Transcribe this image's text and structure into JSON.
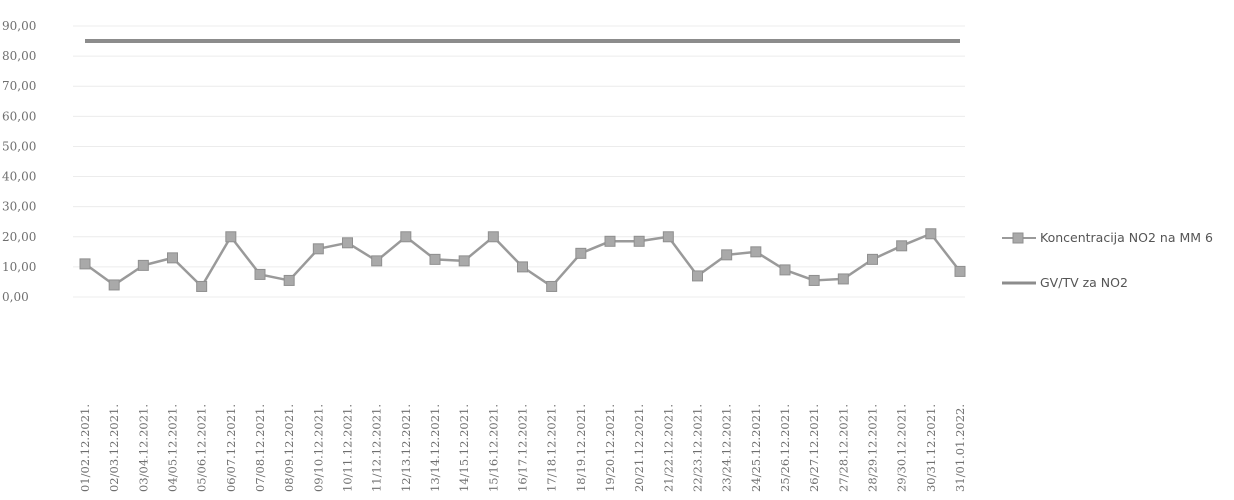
{
  "chart_data": {
    "type": "line",
    "title": "",
    "xlabel": "",
    "ylabel": "",
    "ylim": [
      0,
      90
    ],
    "yticks": [
      "0,00",
      "10,00",
      "20,00",
      "30,00",
      "40,00",
      "50,00",
      "60,00",
      "70,00",
      "80,00",
      "90,00"
    ],
    "grid": true,
    "legend_position": "right",
    "categories": [
      "01/02.12.2021.",
      "02/03.12.2021.",
      "03/04.12.2021.",
      "04/05.12.2021.",
      "05/06.12.2021.",
      "06/07.12.2021.",
      "07/08.12.2021.",
      "08/09.12.2021.",
      "09/10.12.2021.",
      "10/11.12.2021.",
      "11/12.12.2021.",
      "12/13.12.2021.",
      "13/14.12.2021.",
      "14/15.12.2021.",
      "15/16.12.2021.",
      "16/17.12.2021.",
      "17/18.12.2021.",
      "18/19.12.2021.",
      "19/20.12.2021.",
      "20/21.12.2021.",
      "21/22.12.2021.",
      "22/23.12.2021.",
      "23/24.12.2021.",
      "24/25.12.2021.",
      "25/26.12.2021.",
      "26/27.12.2021.",
      "27/28.12.2021.",
      "28/29.12.2021.",
      "29/30.12.2021.",
      "30/31.12.2021.",
      "31/01.01.2022."
    ],
    "series": [
      {
        "name": "Koncentracija NO2 na MM 6",
        "color": "#9a9a9a",
        "marker": "square",
        "values": [
          11,
          4,
          10.5,
          13,
          3.5,
          20,
          7.5,
          5.5,
          16,
          18,
          12,
          20,
          12.5,
          12,
          20,
          10,
          3.5,
          14.5,
          18.5,
          18.5,
          20,
          7,
          14,
          15,
          9,
          5.5,
          6,
          12.5,
          17,
          21,
          8.5
        ]
      },
      {
        "name": "GV/TV za NO2",
        "color": "#8c8c8c",
        "marker": "none",
        "values": [
          85,
          85,
          85,
          85,
          85,
          85,
          85,
          85,
          85,
          85,
          85,
          85,
          85,
          85,
          85,
          85,
          85,
          85,
          85,
          85,
          85,
          85,
          85,
          85,
          85,
          85,
          85,
          85,
          85,
          85,
          85
        ]
      }
    ]
  }
}
